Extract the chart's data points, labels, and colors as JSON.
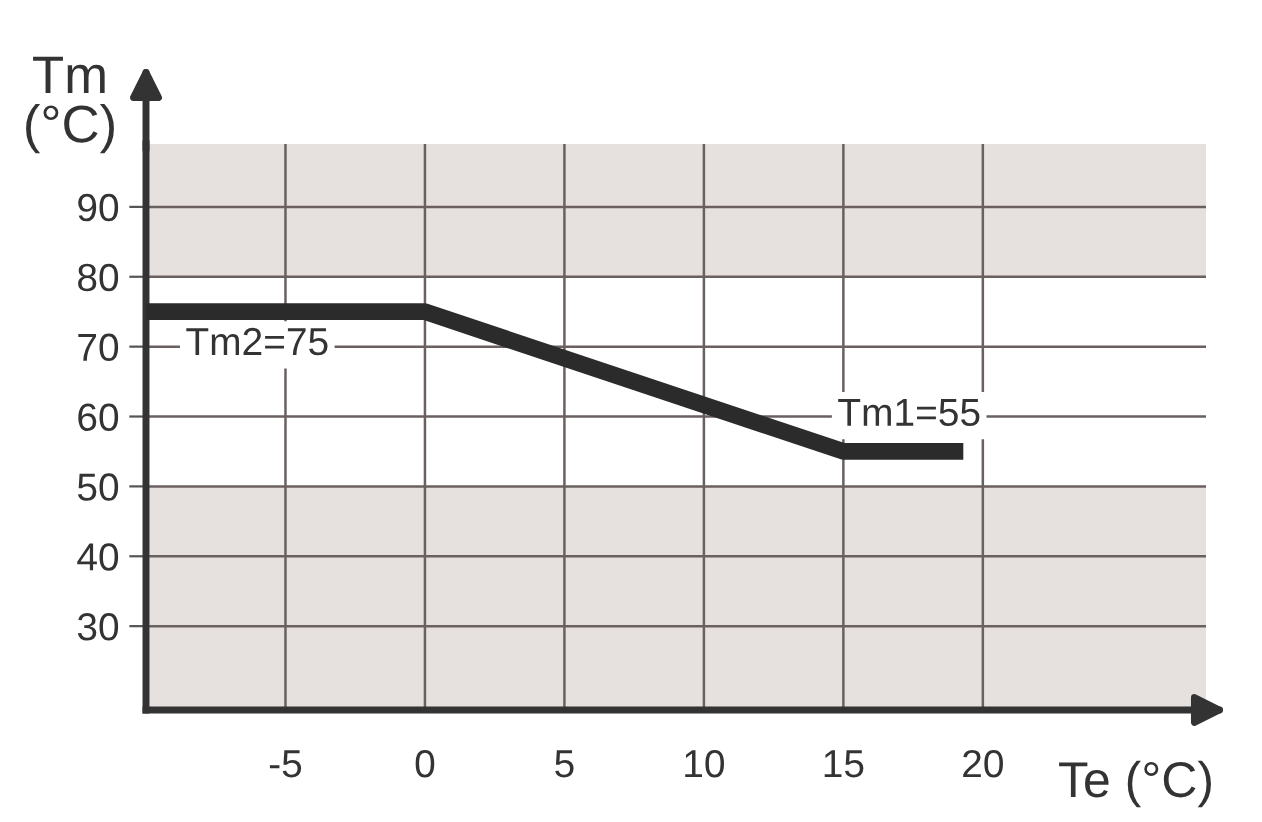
{
  "chart_data": {
    "type": "line",
    "xlabel": "Te (°C)",
    "ylabel": "Tm\n(°C)",
    "x": [
      -10,
      0,
      15,
      19.3
    ],
    "series": [
      {
        "color": "#2b2b2b",
        "values": [
          75,
          75,
          55,
          55
        ]
      }
    ],
    "xlim": [
      -10,
      28
    ],
    "ylim": [
      18,
      99
    ],
    "xticks": [
      -5,
      0,
      5,
      10,
      15,
      20
    ],
    "yticks": [
      30,
      40,
      50,
      60,
      70,
      80,
      90
    ],
    "bands": [
      {
        "axis": "y",
        "from": 80,
        "to": 99,
        "color": "#e6e1df"
      },
      {
        "axis": "y",
        "from": 18,
        "to": 50,
        "color": "#e6e1df"
      }
    ],
    "annotations": [
      "Tm2=75",
      "Tm1=55"
    ],
    "grid": true,
    "marker": "none",
    "line_style": "solid"
  }
}
